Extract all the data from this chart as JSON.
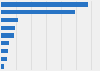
{
  "values": [
    57986,
    49016,
    11109,
    9568,
    8471,
    5047,
    4483,
    3900,
    1712
  ],
  "bar_color": "#2874c5",
  "background_color": "#f0f0f0",
  "bar_height": 0.55,
  "xlim": [
    0,
    65000
  ],
  "grid_values": [
    10000,
    20000,
    30000,
    40000,
    50000,
    60000
  ],
  "grid_color": "#d8d8d8",
  "grid_linewidth": 0.5
}
